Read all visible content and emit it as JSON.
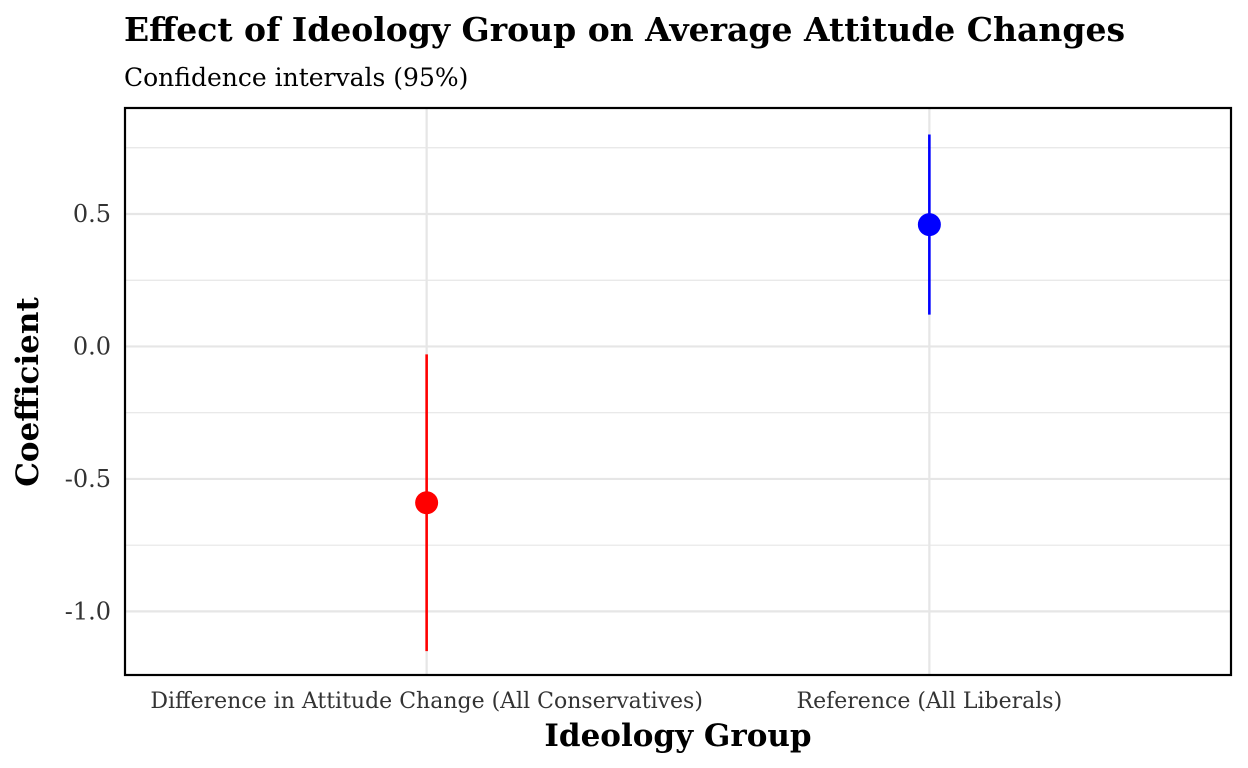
{
  "chart_data": {
    "type": "scatter",
    "title": "Effect of Ideology Group on Average Attitude Changes",
    "subtitle": "Confidence intervals (95%)",
    "xlabel": "Ideology Group",
    "ylabel": "Coefficient",
    "categories": [
      "Difference in Attitude Change (All Conservatives)",
      "Reference (All Liberals)"
    ],
    "points": [
      {
        "category": "Difference in Attitude Change (All Conservatives)",
        "estimate": -0.59,
        "lower": -1.15,
        "upper": -0.03,
        "color": "#ff0000"
      },
      {
        "category": "Reference (All Liberals)",
        "estimate": 0.46,
        "lower": 0.12,
        "upper": 0.8,
        "color": "#0000ff"
      }
    ],
    "y_ticks": [
      -1.0,
      -0.5,
      0.0,
      0.5
    ],
    "y_tick_labels": [
      "-1.0",
      "-0.5",
      "0.0",
      "0.5"
    ],
    "ylim": [
      -1.24,
      0.9
    ],
    "grid": true,
    "legend": "none",
    "colors": {
      "grid": "#e6e6e6",
      "panel_border": "#000000",
      "tick_text": "#333333"
    }
  }
}
